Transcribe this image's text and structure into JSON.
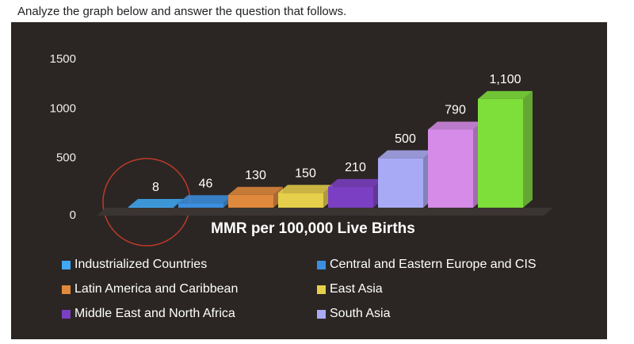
{
  "question": "Analyze the graph below and answer the question that follows.",
  "chart_data": {
    "type": "bar3d",
    "x_label": "MMR per 100,000 Live Births",
    "categories": [
      "Industrialized Countries",
      "Central and Eastern Europe and CIS",
      "Latin America and Caribbean",
      "East Asia",
      "Middle East and North Africa",
      "South Asia",
      null,
      null
    ],
    "values": [
      8,
      46,
      130,
      150,
      210,
      500,
      790,
      1100
    ],
    "value_labels": [
      "8",
      "46",
      "130",
      "150",
      "210",
      "500",
      "790",
      "1,100"
    ],
    "colors": [
      "#3fa9f5",
      "#3b8fe0",
      "#e0893c",
      "#e6cf4a",
      "#7b3fc4",
      "#a9aaf5",
      "#d68be8",
      "#7edf3a"
    ],
    "ylim": [
      0,
      1500
    ],
    "yticks": [
      0,
      500,
      1000,
      1500
    ]
  }
}
